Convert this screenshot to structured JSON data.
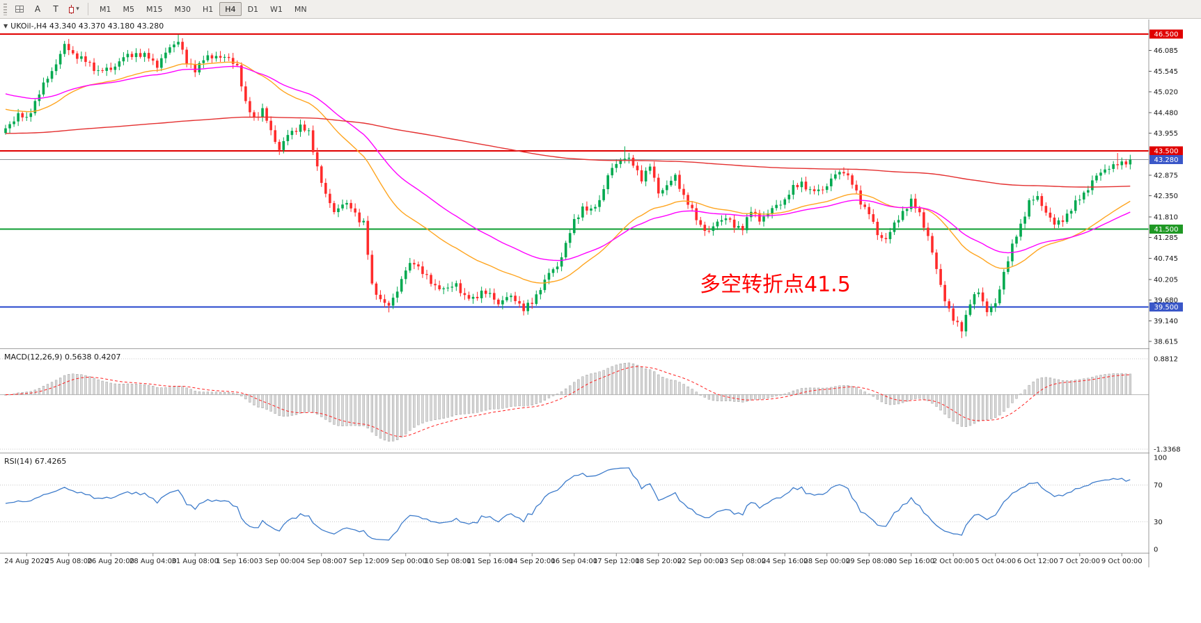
{
  "toolbar": {
    "tools": [
      {
        "name": "cursor-tool",
        "label": "A"
      },
      {
        "name": "text-tool",
        "label": "T"
      },
      {
        "name": "chart-type-caret",
        "label": "▾"
      }
    ],
    "timeframes": [
      "M1",
      "M5",
      "M15",
      "M30",
      "H1",
      "H4",
      "D1",
      "W1",
      "MN"
    ],
    "active_timeframe": "H4"
  },
  "price_panel": {
    "collapse_icon": "▼",
    "title": "UKOil-,H4 43.340 43.370 43.180 43.280",
    "symbol": "UKOil-",
    "period": "H4",
    "ohlc_text": {
      "open": "43.340",
      "high": "43.370",
      "low": "43.180",
      "close": "43.280"
    },
    "annotation": {
      "text": "多空转折点41.5",
      "color": "#FF0000"
    }
  },
  "chart_data": {
    "type": "candlestick",
    "symbol": "UKOil-",
    "timeframe": "H4",
    "last_close": 43.28,
    "y_range": [
      38.45,
      46.89
    ],
    "macd_range": [
      -1.405,
      1.103
    ],
    "rsi_range": [
      0,
      100
    ],
    "x_labels": [
      "24 Aug 2020",
      "25 Aug 08:00",
      "26 Aug 20:00",
      "28 Aug 04:00",
      "31 Aug 08:00",
      "1 Sep 16:00",
      "3 Sep 00:00",
      "4 Sep 08:00",
      "7 Sep 12:00",
      "9 Sep 00:00",
      "10 Sep 08:00",
      "11 Sep 16:00",
      "14 Sep 20:00",
      "16 Sep 04:00",
      "17 Sep 12:00",
      "18 Sep 20:00",
      "22 Sep 00:00",
      "23 Sep 08:00",
      "24 Sep 16:00",
      "28 Sep 00:00",
      "29 Sep 08:00",
      "30 Sep 16:00",
      "2 Oct 00:00",
      "5 Oct 04:00",
      "6 Oct 12:00",
      "7 Oct 20:00",
      "9 Oct 00:00"
    ],
    "y_axis": {
      "ticks": [
        46.085,
        45.545,
        45.02,
        44.48,
        43.955,
        42.875,
        42.35,
        41.81,
        41.285,
        40.745,
        40.205,
        39.68,
        39.14,
        38.615
      ],
      "badges": [
        {
          "label": "46.500",
          "price": 46.5,
          "bg": "#E00000"
        },
        {
          "label": "43.500",
          "price": 43.5,
          "bg": "#E00000"
        },
        {
          "label": "43.280",
          "price": 43.28,
          "bg": "#3A57C8"
        },
        {
          "label": "41.500",
          "price": 41.5,
          "bg": "#1F9824"
        },
        {
          "label": "39.500",
          "price": 39.5,
          "bg": "#3A57C8"
        }
      ]
    },
    "levels": [
      {
        "name": "resistance-46.5",
        "price": 46.5,
        "color": "#E00000",
        "width": 2
      },
      {
        "name": "resistance-43.5",
        "price": 43.5,
        "color": "#E00000",
        "width": 2
      },
      {
        "name": "current-price",
        "price": 43.28,
        "color": "#8C9196",
        "width": 1
      },
      {
        "name": "pivot-41.5",
        "price": 41.5,
        "color": "#0E9C31",
        "width": 2
      },
      {
        "name": "support-39.5",
        "price": 39.5,
        "color": "#2445CC",
        "width": 2
      }
    ],
    "candle_colors": {
      "up": "#00A94F",
      "down": "#FF2B2B"
    },
    "anchor_closes": [
      [
        0,
        44.05
      ],
      [
        3,
        44.45
      ],
      [
        5,
        44.3
      ],
      [
        8,
        45.0
      ],
      [
        11,
        45.55
      ],
      [
        14,
        46.2
      ],
      [
        16,
        46.0
      ],
      [
        19,
        45.8
      ],
      [
        22,
        45.55
      ],
      [
        25,
        45.6
      ],
      [
        28,
        45.9
      ],
      [
        31,
        46.0
      ],
      [
        34,
        45.9
      ],
      [
        36,
        45.7
      ],
      [
        39,
        46.15
      ],
      [
        41,
        46.35
      ],
      [
        43,
        45.75
      ],
      [
        45,
        45.6
      ],
      [
        47,
        45.85
      ],
      [
        50,
        45.95
      ],
      [
        53,
        45.85
      ],
      [
        55,
        45.7
      ],
      [
        57,
        44.7
      ],
      [
        59,
        44.35
      ],
      [
        61,
        44.55
      ],
      [
        63,
        44.0
      ],
      [
        65,
        43.55
      ],
      [
        67,
        43.9
      ],
      [
        70,
        44.15
      ],
      [
        72,
        43.95
      ],
      [
        74,
        43.1
      ],
      [
        76,
        42.35
      ],
      [
        78,
        41.95
      ],
      [
        80,
        42.15
      ],
      [
        82,
        42.05
      ],
      [
        84,
        41.75
      ],
      [
        85,
        41.65
      ],
      [
        87,
        40.05
      ],
      [
        89,
        39.7
      ],
      [
        91,
        39.5
      ],
      [
        93,
        39.95
      ],
      [
        95,
        40.45
      ],
      [
        97,
        40.65
      ],
      [
        99,
        40.4
      ],
      [
        101,
        40.1
      ],
      [
        103,
        40.0
      ],
      [
        105,
        39.95
      ],
      [
        107,
        40.1
      ],
      [
        109,
        39.75
      ],
      [
        111,
        39.7
      ],
      [
        113,
        39.9
      ],
      [
        115,
        39.8
      ],
      [
        117,
        39.6
      ],
      [
        119,
        39.75
      ],
      [
        121,
        39.7
      ],
      [
        123,
        39.45
      ],
      [
        125,
        39.6
      ],
      [
        127,
        40.0
      ],
      [
        129,
        40.35
      ],
      [
        131,
        40.55
      ],
      [
        133,
        41.1
      ],
      [
        135,
        41.7
      ],
      [
        137,
        42.05
      ],
      [
        139,
        41.95
      ],
      [
        141,
        42.25
      ],
      [
        143,
        42.85
      ],
      [
        145,
        43.2
      ],
      [
        147,
        43.35
      ],
      [
        149,
        43.15
      ],
      [
        151,
        42.8
      ],
      [
        153,
        43.1
      ],
      [
        155,
        42.45
      ],
      [
        157,
        42.6
      ],
      [
        159,
        42.85
      ],
      [
        161,
        42.35
      ],
      [
        163,
        41.95
      ],
      [
        165,
        41.6
      ],
      [
        167,
        41.4
      ],
      [
        169,
        41.7
      ],
      [
        171,
        41.8
      ],
      [
        173,
        41.55
      ],
      [
        175,
        41.55
      ],
      [
        177,
        41.95
      ],
      [
        179,
        41.75
      ],
      [
        181,
        41.9
      ],
      [
        183,
        42.1
      ],
      [
        185,
        42.25
      ],
      [
        187,
        42.55
      ],
      [
        189,
        42.7
      ],
      [
        191,
        42.45
      ],
      [
        193,
        42.5
      ],
      [
        195,
        42.6
      ],
      [
        197,
        42.9
      ],
      [
        199,
        43.0
      ],
      [
        201,
        42.65
      ],
      [
        203,
        42.2
      ],
      [
        205,
        41.9
      ],
      [
        207,
        41.35
      ],
      [
        209,
        41.25
      ],
      [
        211,
        41.6
      ],
      [
        213,
        41.95
      ],
      [
        215,
        42.2
      ],
      [
        217,
        41.9
      ],
      [
        219,
        41.3
      ],
      [
        221,
        40.45
      ],
      [
        223,
        39.7
      ],
      [
        225,
        39.15
      ],
      [
        227,
        38.95
      ],
      [
        229,
        39.6
      ],
      [
        231,
        39.9
      ],
      [
        233,
        39.4
      ],
      [
        235,
        39.55
      ],
      [
        237,
        40.4
      ],
      [
        239,
        41.05
      ],
      [
        241,
        41.6
      ],
      [
        243,
        42.2
      ],
      [
        245,
        42.3
      ],
      [
        247,
        41.95
      ],
      [
        249,
        41.6
      ],
      [
        251,
        41.75
      ],
      [
        253,
        42.0
      ],
      [
        255,
        42.3
      ],
      [
        257,
        42.55
      ],
      [
        259,
        42.85
      ],
      [
        261,
        43.05
      ],
      [
        263,
        43.1
      ],
      [
        265,
        43.2
      ],
      [
        267,
        43.28
      ]
    ],
    "extremes": [
      {
        "i": 14,
        "high": 46.32
      },
      {
        "i": 41,
        "high": 46.49
      },
      {
        "i": 91,
        "low": 39.36
      },
      {
        "i": 124,
        "low": 39.3
      },
      {
        "i": 147,
        "high": 43.62
      },
      {
        "i": 227,
        "low": 38.7
      },
      {
        "i": 264,
        "high": 43.45
      }
    ],
    "moving_averages": [
      {
        "name": "fast",
        "color": "#FFA520",
        "period": 34,
        "seed": 44.6
      },
      {
        "name": "medium",
        "color": "#FF00FF",
        "period": 55,
        "seed": 45.0
      },
      {
        "name": "slow",
        "color": "#E43030",
        "period": 400,
        "seed": 43.95
      }
    ],
    "indicators": [
      {
        "name": "MACD",
        "title": "MACD(12,26,9) 0.5638 0.4207",
        "params": [
          12,
          26,
          9
        ],
        "value_main": "0.5638",
        "value_signal": "0.4207",
        "scale_max": "0.8812",
        "scale_min": "-1.3368",
        "histogram_fill": "#D8D8D8",
        "histogram_stroke": "#9E9E9E",
        "signal_color": "#FF2020"
      },
      {
        "name": "RSI",
        "title": "RSI(14) 67.4265",
        "params": [
          14
        ],
        "value": "67.4265",
        "level_lines": [
          70,
          30
        ],
        "levels": [
          "100",
          "70",
          "30",
          "0"
        ],
        "line_color": "#3E7CCB"
      }
    ]
  }
}
